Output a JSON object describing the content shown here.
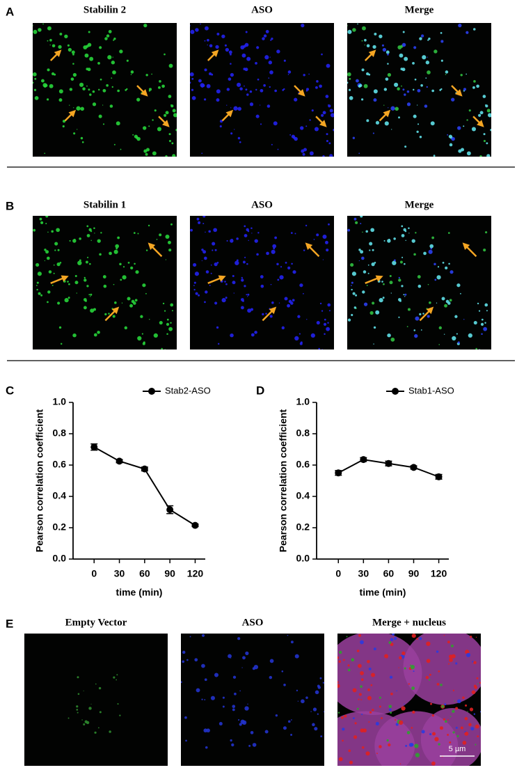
{
  "panels": [
    {
      "label": "A",
      "images": [
        {
          "title": "Stabilin 2"
        },
        {
          "title": "ASO"
        },
        {
          "title": "Merge"
        }
      ]
    },
    {
      "label": "B",
      "images": [
        {
          "title": "Stabilin 1"
        },
        {
          "title": "ASO"
        },
        {
          "title": "Merge"
        }
      ]
    },
    {
      "label": "E",
      "images": [
        {
          "title": "Empty Vector"
        },
        {
          "title": "ASO"
        },
        {
          "title": "Merge + nucleus"
        }
      ],
      "scale_bar": "5 µm"
    }
  ],
  "chart_data": [
    {
      "type": "line",
      "panel_label": "C",
      "x_label": "time (min)",
      "y_label": "Pearson correlation coefficient",
      "x": [
        0,
        30,
        60,
        90,
        120
      ],
      "xlim": [
        -25,
        132
      ],
      "xticks": [
        0,
        30,
        60,
        90,
        120
      ],
      "ylim": [
        0,
        1
      ],
      "yticks": [
        {
          "value": 0,
          "label": "0.0"
        },
        0.2,
        0.4,
        0.6,
        0.8,
        {
          "value": 1,
          "label": "1.0"
        }
      ],
      "series": [
        {
          "name": "Stab2-ASO",
          "color": "#000000",
          "values": [
            0.715,
            0.625,
            0.575,
            0.315,
            0.215
          ],
          "errors": [
            0.02,
            0.01,
            0.012,
            0.025,
            0.008
          ]
        }
      ]
    },
    {
      "type": "line",
      "panel_label": "D",
      "x_label": "time (min)",
      "y_label": "Pearson correlation coefficient",
      "x": [
        0,
        30,
        60,
        90,
        120
      ],
      "xlim": [
        -26,
        132
      ],
      "xticks": [
        0,
        30,
        60,
        90,
        120
      ],
      "ylim": [
        0,
        1
      ],
      "yticks": [
        {
          "value": 0,
          "label": "0.0"
        },
        0.2,
        0.4,
        0.6,
        0.8,
        {
          "value": 1,
          "label": "1.0"
        }
      ],
      "series": [
        {
          "name": "Stab1-ASO",
          "color": "#000000",
          "values": [
            0.55,
            0.635,
            0.61,
            0.585,
            0.525
          ],
          "errors": [
            0.015,
            0.012,
            0.015,
            0.01,
            0.015
          ]
        }
      ]
    }
  ]
}
